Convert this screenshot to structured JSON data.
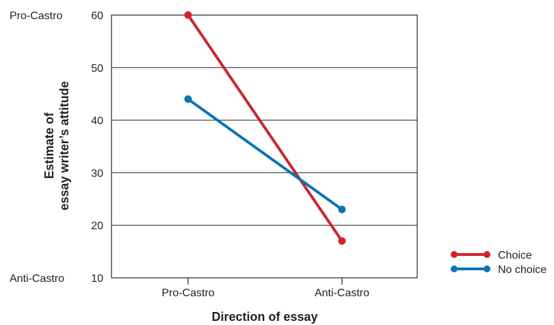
{
  "chart_data": {
    "type": "line",
    "categories": [
      "Pro-Castro",
      "Anti-Castro"
    ],
    "series": [
      {
        "name": "Choice",
        "values": [
          60,
          17
        ],
        "color": "#d2232a"
      },
      {
        "name": "No choice",
        "values": [
          44,
          23
        ],
        "color": "#0a72b8"
      }
    ],
    "xlabel": "Direction of essay",
    "ylabel_lines": [
      "Estimate of",
      "essay writer’s attitude"
    ],
    "ylim": [
      10,
      60
    ],
    "yticks": [
      10,
      20,
      30,
      40,
      50,
      60
    ],
    "scale_labels": {
      "top": "Pro-Castro",
      "bottom": "Anti-Castro"
    },
    "grid": true,
    "legend_position": "bottom-right"
  }
}
